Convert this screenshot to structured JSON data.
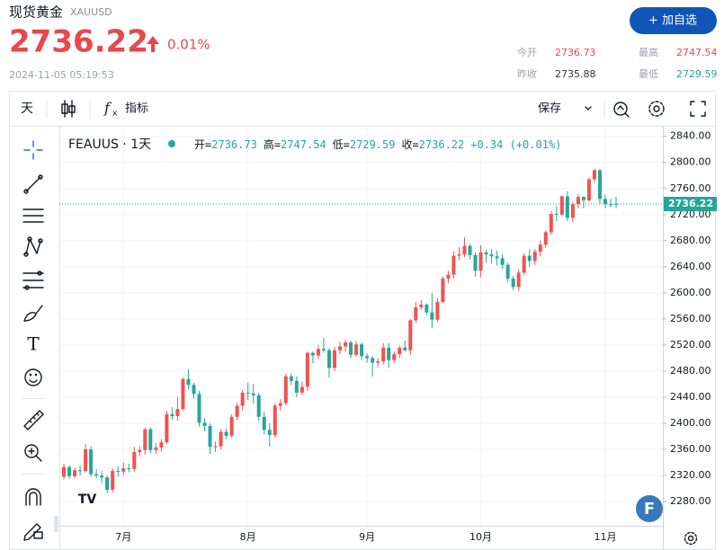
{
  "header": {
    "title": "现货黄金",
    "symbol": "XAUUSD",
    "price": "2736.22",
    "change": "0.01%",
    "time": "2024-11-05 05:19:53",
    "button": "+ 加自选",
    "stats": [
      {
        "label": "今开",
        "value": "2736.73"
      },
      {
        "label": "最高",
        "value": "2747.54"
      },
      {
        "label": "昨收",
        "value": "2735.88"
      },
      {
        "label": "最低",
        "value": "2729.59"
      }
    ]
  },
  "toolbar": {
    "interval": "天",
    "indicators": "指标",
    "save": "保存"
  },
  "chart_data": {
    "type": "candlestick",
    "title": "FEAUUS · 1天",
    "legend": [
      {
        "label": "开=",
        "value": "2736.73"
      },
      {
        "label": "高=",
        "value": "2747.54"
      },
      {
        "label": "低=",
        "value": "2729.59"
      },
      {
        "label": "收=",
        "value": "2736.22"
      },
      {
        "label": "",
        "value": "+0.34 (+0.01%)"
      }
    ],
    "up_color": "#ef5350",
    "down_color": "#26a69a",
    "grid": true,
    "ylim": [
      2243,
      2852
    ],
    "yticks": [
      {
        "value": 2280,
        "label": "2280.00"
      },
      {
        "value": 2320,
        "label": "2320.00"
      },
      {
        "value": 2360,
        "label": "2360.00"
      },
      {
        "value": 2400,
        "label": "2400.00"
      },
      {
        "value": 2440,
        "label": "2440.00"
      },
      {
        "value": 2480,
        "label": "2480.00"
      },
      {
        "value": 2520,
        "label": "2520.00"
      },
      {
        "value": 2560,
        "label": "2560.00"
      },
      {
        "value": 2600,
        "label": "2600.00"
      },
      {
        "value": 2640,
        "label": "2640.00"
      },
      {
        "value": 2680,
        "label": "2680.00"
      },
      {
        "value": 2720,
        "label": "2720.00"
      },
      {
        "value": 2760,
        "label": "2760.00"
      },
      {
        "value": 2800,
        "label": "2800.00"
      },
      {
        "value": 2840,
        "label": "2840.00"
      }
    ],
    "categories": [
      null,
      null,
      null,
      null,
      null,
      null,
      null,
      null,
      null,
      null,
      null,
      "7月",
      null,
      null,
      null,
      null,
      null,
      null,
      null,
      null,
      null,
      null,
      null,
      null,
      null,
      null,
      null,
      null,
      null,
      null,
      null,
      null,
      null,
      null,
      "8月",
      null,
      null,
      null,
      null,
      null,
      null,
      null,
      null,
      null,
      null,
      null,
      null,
      null,
      null,
      null,
      null,
      null,
      null,
      null,
      null,
      null,
      "9月",
      null,
      null,
      null,
      null,
      null,
      null,
      null,
      null,
      null,
      null,
      null,
      null,
      null,
      null,
      null,
      null,
      null,
      null,
      null,
      null,
      "10月",
      null,
      null,
      null,
      null,
      null,
      null,
      null,
      null,
      null,
      null,
      null,
      null,
      null,
      null,
      null,
      null,
      null,
      null,
      null,
      null,
      null,
      null,
      "11月",
      null,
      null
    ],
    "ohlc": [
      [
        2318,
        2338,
        2314,
        2333
      ],
      [
        2333,
        2336,
        2315,
        2319
      ],
      [
        2319,
        2332,
        2316,
        2328
      ],
      [
        2328,
        2335,
        2320,
        2327
      ],
      [
        2327,
        2368,
        2325,
        2360
      ],
      [
        2360,
        2365,
        2318,
        2322
      ],
      [
        2322,
        2330,
        2316,
        2320
      ],
      [
        2320,
        2327,
        2308,
        2317
      ],
      [
        2317,
        2320,
        2293,
        2298
      ],
      [
        2298,
        2331,
        2294,
        2327
      ],
      [
        2327,
        2334,
        2318,
        2326
      ],
      [
        2326,
        2340,
        2320,
        2331
      ],
      [
        2331,
        2338,
        2325,
        2330
      ],
      [
        2330,
        2364,
        2326,
        2356
      ],
      [
        2356,
        2365,
        2350,
        2359
      ],
      [
        2359,
        2393,
        2352,
        2391
      ],
      [
        2391,
        2394,
        2354,
        2359
      ],
      [
        2359,
        2370,
        2353,
        2363
      ],
      [
        2363,
        2376,
        2357,
        2371
      ],
      [
        2371,
        2419,
        2368,
        2414
      ],
      [
        2414,
        2425,
        2405,
        2411
      ],
      [
        2411,
        2440,
        2404,
        2422
      ],
      [
        2422,
        2470,
        2420,
        2468
      ],
      [
        2468,
        2483,
        2452,
        2459
      ],
      [
        2459,
        2462,
        2438,
        2445
      ],
      [
        2445,
        2450,
        2395,
        2401
      ],
      [
        2401,
        2408,
        2388,
        2396
      ],
      [
        2396,
        2400,
        2353,
        2364
      ],
      [
        2364,
        2372,
        2356,
        2365
      ],
      [
        2365,
        2391,
        2360,
        2387
      ],
      [
        2387,
        2392,
        2376,
        2381
      ],
      [
        2381,
        2414,
        2378,
        2410
      ],
      [
        2410,
        2432,
        2405,
        2427
      ],
      [
        2427,
        2451,
        2420,
        2447
      ],
      [
        2447,
        2462,
        2436,
        2446
      ],
      [
        2446,
        2460,
        2430,
        2443
      ],
      [
        2443,
        2447,
        2403,
        2410
      ],
      [
        2410,
        2418,
        2383,
        2390
      ],
      [
        2390,
        2400,
        2364,
        2382
      ],
      [
        2382,
        2431,
        2378,
        2427
      ],
      [
        2427,
        2437,
        2420,
        2431
      ],
      [
        2431,
        2476,
        2428,
        2472
      ],
      [
        2472,
        2477,
        2459,
        2465
      ],
      [
        2465,
        2472,
        2440,
        2447
      ],
      [
        2447,
        2464,
        2443,
        2456
      ],
      [
        2456,
        2510,
        2450,
        2508
      ],
      [
        2508,
        2510,
        2492,
        2504
      ],
      [
        2504,
        2520,
        2499,
        2514
      ],
      [
        2514,
        2531,
        2508,
        2512
      ],
      [
        2512,
        2515,
        2470,
        2485
      ],
      [
        2485,
        2517,
        2480,
        2512
      ],
      [
        2512,
        2525,
        2506,
        2518
      ],
      [
        2518,
        2528,
        2510,
        2524
      ],
      [
        2524,
        2527,
        2500,
        2505
      ],
      [
        2505,
        2526,
        2502,
        2521
      ],
      [
        2521,
        2524,
        2497,
        2503
      ],
      [
        2503,
        2507,
        2493,
        2500
      ],
      [
        2500,
        2503,
        2472,
        2493
      ],
      [
        2493,
        2500,
        2486,
        2495
      ],
      [
        2495,
        2523,
        2490,
        2516
      ],
      [
        2516,
        2523,
        2485,
        2497
      ],
      [
        2497,
        2510,
        2492,
        2506
      ],
      [
        2506,
        2519,
        2500,
        2516
      ],
      [
        2516,
        2527,
        2510,
        2512
      ],
      [
        2512,
        2560,
        2505,
        2558
      ],
      [
        2558,
        2586,
        2554,
        2578
      ],
      [
        2578,
        2589,
        2574,
        2582
      ],
      [
        2582,
        2584,
        2566,
        2570
      ],
      [
        2570,
        2600,
        2546,
        2559
      ],
      [
        2559,
        2592,
        2555,
        2586
      ],
      [
        2586,
        2625,
        2584,
        2622
      ],
      [
        2622,
        2634,
        2615,
        2628
      ],
      [
        2628,
        2664,
        2622,
        2657
      ],
      [
        2657,
        2670,
        2650,
        2659
      ],
      [
        2659,
        2685,
        2655,
        2672
      ],
      [
        2672,
        2675,
        2651,
        2658
      ],
      [
        2658,
        2662,
        2625,
        2634
      ],
      [
        2634,
        2673,
        2624,
        2662
      ],
      [
        2662,
        2666,
        2646,
        2659
      ],
      [
        2659,
        2667,
        2645,
        2656
      ],
      [
        2656,
        2665,
        2642,
        2653
      ],
      [
        2653,
        2659,
        2637,
        2643
      ],
      [
        2643,
        2646,
        2617,
        2622
      ],
      [
        2622,
        2626,
        2604,
        2609
      ],
      [
        2609,
        2636,
        2603,
        2631
      ],
      [
        2631,
        2661,
        2627,
        2657
      ],
      [
        2657,
        2667,
        2640,
        2649
      ],
      [
        2649,
        2667,
        2643,
        2663
      ],
      [
        2663,
        2680,
        2656,
        2674
      ],
      [
        2674,
        2696,
        2669,
        2693
      ],
      [
        2693,
        2725,
        2689,
        2721
      ],
      [
        2721,
        2733,
        2710,
        2720
      ],
      [
        2720,
        2750,
        2718,
        2748
      ],
      [
        2748,
        2756,
        2710,
        2715
      ],
      [
        2715,
        2740,
        2708,
        2736
      ],
      [
        2736,
        2751,
        2730,
        2747
      ],
      [
        2747,
        2748,
        2730,
        2742
      ],
      [
        2742,
        2777,
        2740,
        2774
      ],
      [
        2774,
        2790,
        2769,
        2788
      ],
      [
        2788,
        2790,
        2736,
        2744
      ],
      [
        2744,
        2750,
        2730,
        2736
      ],
      [
        2736,
        2744,
        2731,
        2735.88
      ],
      [
        2736.73,
        2747.54,
        2729.59,
        2736.22
      ]
    ]
  }
}
